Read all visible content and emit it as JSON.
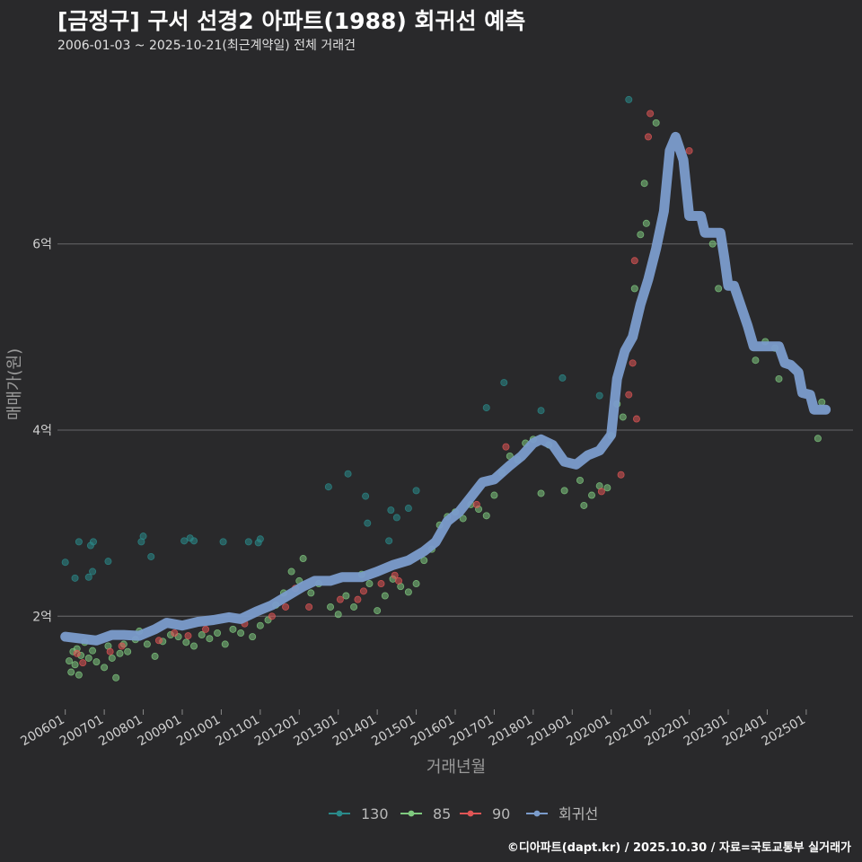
{
  "header": {
    "title": "[금정구] 구서 선경2 아파트(1988) 회귀선 예측",
    "subtitle": "2006-01-03 ~ 2025-10-21(최근계약일) 전체 거래건"
  },
  "footer": {
    "credit": "©디아파트(dapt.kr) / 2025.10.30 / 자료=국토교통부 실거래가"
  },
  "chart_data": {
    "type": "scatter",
    "title": "[금정구] 구서 선경2 아파트(1988) 회귀선 예측",
    "xlabel": "거래년월",
    "ylabel": "매매가(원)",
    "xlim": [
      2005.8,
      2026.2
    ],
    "ylim": [
      1.0,
      7.8
    ],
    "y_unit": "억",
    "y_ticks": [
      2,
      4,
      6
    ],
    "y_tick_labels": [
      "2억",
      "4억",
      "6억"
    ],
    "x_ticks": [
      2006,
      2007,
      2008,
      2009,
      2010,
      2011,
      2012,
      2013,
      2014,
      2015,
      2016,
      2017,
      2018,
      2019,
      2020,
      2021,
      2022,
      2023,
      2024,
      2025
    ],
    "x_tick_labels": [
      "200601",
      "200701",
      "200801",
      "200901",
      "201001",
      "201101",
      "201201",
      "201301",
      "201401",
      "201501",
      "201601",
      "201701",
      "201801",
      "201901",
      "202001",
      "202101",
      "202201",
      "202301",
      "202401",
      "202501"
    ],
    "legend": {
      "position": "bottom",
      "entries": [
        {
          "label": "130",
          "color": "#2a8a8a"
        },
        {
          "label": "85",
          "color": "#7fc97f"
        },
        {
          "label": "90",
          "color": "#e05555"
        },
        {
          "label": "회귀선",
          "color": "#7b9ccc"
        }
      ]
    },
    "series": [
      {
        "name": "130",
        "color": "#2a8a8a",
        "points": [
          [
            2006.0,
            2.58
          ],
          [
            2006.25,
            2.41
          ],
          [
            2006.35,
            2.8
          ],
          [
            2006.6,
            2.42
          ],
          [
            2006.65,
            2.76
          ],
          [
            2006.72,
            2.8
          ],
          [
            2006.7,
            2.48
          ],
          [
            2007.1,
            2.59
          ],
          [
            2007.95,
            2.8
          ],
          [
            2008.0,
            2.86
          ],
          [
            2008.2,
            2.64
          ],
          [
            2009.05,
            2.81
          ],
          [
            2009.2,
            2.84
          ],
          [
            2009.3,
            2.81
          ],
          [
            2010.05,
            2.8
          ],
          [
            2010.7,
            2.8
          ],
          [
            2010.95,
            2.79
          ],
          [
            2011.0,
            2.83
          ],
          [
            2012.75,
            3.39
          ],
          [
            2013.25,
            3.53
          ],
          [
            2013.7,
            3.29
          ],
          [
            2013.75,
            3.0
          ],
          [
            2014.3,
            2.81
          ],
          [
            2014.35,
            3.14
          ],
          [
            2014.5,
            3.06
          ],
          [
            2014.8,
            3.16
          ],
          [
            2015.0,
            3.35
          ],
          [
            2016.8,
            4.24
          ],
          [
            2017.25,
            4.51
          ],
          [
            2018.2,
            4.21
          ],
          [
            2018.75,
            4.56
          ],
          [
            2019.7,
            4.37
          ],
          [
            2020.45,
            7.55
          ]
        ]
      },
      {
        "name": "85",
        "color": "#7fc97f",
        "points": [
          [
            2006.1,
            1.52
          ],
          [
            2006.15,
            1.4
          ],
          [
            2006.2,
            1.62
          ],
          [
            2006.25,
            1.48
          ],
          [
            2006.3,
            1.65
          ],
          [
            2006.35,
            1.37
          ],
          [
            2006.4,
            1.58
          ],
          [
            2006.5,
            1.72
          ],
          [
            2006.6,
            1.55
          ],
          [
            2006.7,
            1.63
          ],
          [
            2006.8,
            1.51
          ],
          [
            2007.0,
            1.45
          ],
          [
            2007.1,
            1.68
          ],
          [
            2007.2,
            1.55
          ],
          [
            2007.3,
            1.34
          ],
          [
            2007.4,
            1.6
          ],
          [
            2007.5,
            1.7
          ],
          [
            2007.6,
            1.62
          ],
          [
            2007.8,
            1.75
          ],
          [
            2007.9,
            1.84
          ],
          [
            2008.1,
            1.7
          ],
          [
            2008.3,
            1.57
          ],
          [
            2008.5,
            1.73
          ],
          [
            2008.7,
            1.8
          ],
          [
            2008.9,
            1.78
          ],
          [
            2009.1,
            1.72
          ],
          [
            2009.3,
            1.68
          ],
          [
            2009.5,
            1.8
          ],
          [
            2009.7,
            1.76
          ],
          [
            2009.9,
            1.82
          ],
          [
            2010.1,
            1.7
          ],
          [
            2010.3,
            1.86
          ],
          [
            2010.5,
            1.82
          ],
          [
            2010.8,
            1.78
          ],
          [
            2011.0,
            1.9
          ],
          [
            2011.2,
            1.96
          ],
          [
            2011.4,
            2.12
          ],
          [
            2011.6,
            2.25
          ],
          [
            2011.8,
            2.48
          ],
          [
            2012.0,
            2.38
          ],
          [
            2012.1,
            2.62
          ],
          [
            2012.3,
            2.25
          ],
          [
            2012.5,
            2.35
          ],
          [
            2012.8,
            2.1
          ],
          [
            2013.0,
            2.02
          ],
          [
            2013.2,
            2.22
          ],
          [
            2013.4,
            2.1
          ],
          [
            2013.6,
            2.45
          ],
          [
            2013.8,
            2.35
          ],
          [
            2014.0,
            2.06
          ],
          [
            2014.2,
            2.22
          ],
          [
            2014.4,
            2.4
          ],
          [
            2014.6,
            2.32
          ],
          [
            2014.8,
            2.26
          ],
          [
            2015.0,
            2.35
          ],
          [
            2015.2,
            2.6
          ],
          [
            2015.4,
            2.72
          ],
          [
            2015.6,
            2.98
          ],
          [
            2015.8,
            3.07
          ],
          [
            2016.0,
            3.12
          ],
          [
            2016.2,
            3.05
          ],
          [
            2016.4,
            3.2
          ],
          [
            2016.6,
            3.15
          ],
          [
            2016.8,
            3.08
          ],
          [
            2017.0,
            3.3
          ],
          [
            2017.2,
            3.54
          ],
          [
            2017.4,
            3.72
          ],
          [
            2017.6,
            3.68
          ],
          [
            2017.8,
            3.86
          ],
          [
            2018.0,
            3.9
          ],
          [
            2018.2,
            3.32
          ],
          [
            2018.4,
            3.84
          ],
          [
            2018.8,
            3.35
          ],
          [
            2019.2,
            3.46
          ],
          [
            2019.3,
            3.19
          ],
          [
            2019.5,
            3.3
          ],
          [
            2019.7,
            3.4
          ],
          [
            2019.9,
            3.38
          ],
          [
            2020.0,
            3.94
          ],
          [
            2020.15,
            4.28
          ],
          [
            2020.3,
            4.14
          ],
          [
            2020.6,
            5.52
          ],
          [
            2020.75,
            6.1
          ],
          [
            2020.85,
            6.65
          ],
          [
            2020.9,
            6.22
          ],
          [
            2021.15,
            7.3
          ],
          [
            2022.6,
            6.0
          ],
          [
            2022.75,
            5.52
          ],
          [
            2023.7,
            4.75
          ],
          [
            2023.95,
            4.95
          ],
          [
            2024.2,
            4.88
          ],
          [
            2024.3,
            4.55
          ],
          [
            2025.3,
            3.91
          ],
          [
            2025.4,
            4.3
          ]
        ]
      },
      {
        "name": "90",
        "color": "#e05555",
        "points": [
          [
            2006.3,
            1.6
          ],
          [
            2006.45,
            1.5
          ],
          [
            2007.15,
            1.62
          ],
          [
            2007.45,
            1.68
          ],
          [
            2008.4,
            1.74
          ],
          [
            2008.8,
            1.82
          ],
          [
            2009.15,
            1.79
          ],
          [
            2009.6,
            1.86
          ],
          [
            2010.6,
            1.92
          ],
          [
            2011.3,
            2.0
          ],
          [
            2011.65,
            2.1
          ],
          [
            2011.9,
            2.3
          ],
          [
            2012.25,
            2.1
          ],
          [
            2013.05,
            2.18
          ],
          [
            2013.5,
            2.18
          ],
          [
            2013.65,
            2.27
          ],
          [
            2014.1,
            2.35
          ],
          [
            2014.45,
            2.44
          ],
          [
            2014.55,
            2.38
          ],
          [
            2016.55,
            3.2
          ],
          [
            2017.3,
            3.82
          ],
          [
            2019.75,
            3.34
          ],
          [
            2020.25,
            3.52
          ],
          [
            2020.45,
            4.38
          ],
          [
            2020.55,
            4.72
          ],
          [
            2020.6,
            5.82
          ],
          [
            2020.65,
            4.12
          ],
          [
            2020.95,
            7.15
          ],
          [
            2021.0,
            7.4
          ],
          [
            2022.0,
            7.0
          ]
        ]
      }
    ],
    "regression": {
      "name": "회귀선",
      "color": "#7b9ccc",
      "points": [
        [
          2006.0,
          1.78
        ],
        [
          2006.4,
          1.76
        ],
        [
          2006.8,
          1.74
        ],
        [
          2007.2,
          1.8
        ],
        [
          2007.5,
          1.8
        ],
        [
          2007.9,
          1.79
        ],
        [
          2008.3,
          1.86
        ],
        [
          2008.6,
          1.93
        ],
        [
          2009.0,
          1.9
        ],
        [
          2009.4,
          1.94
        ],
        [
          2009.8,
          1.96
        ],
        [
          2010.2,
          1.99
        ],
        [
          2010.5,
          1.97
        ],
        [
          2010.9,
          2.05
        ],
        [
          2011.3,
          2.12
        ],
        [
          2011.7,
          2.22
        ],
        [
          2012.1,
          2.32
        ],
        [
          2012.4,
          2.38
        ],
        [
          2012.8,
          2.38
        ],
        [
          2013.1,
          2.42
        ],
        [
          2013.6,
          2.42
        ],
        [
          2014.0,
          2.48
        ],
        [
          2014.4,
          2.55
        ],
        [
          2014.8,
          2.6
        ],
        [
          2015.2,
          2.7
        ],
        [
          2015.5,
          2.8
        ],
        [
          2015.8,
          3.02
        ],
        [
          2016.1,
          3.12
        ],
        [
          2016.4,
          3.28
        ],
        [
          2016.7,
          3.44
        ],
        [
          2017.0,
          3.47
        ],
        [
          2017.4,
          3.62
        ],
        [
          2017.7,
          3.72
        ],
        [
          2018.0,
          3.86
        ],
        [
          2018.2,
          3.9
        ],
        [
          2018.5,
          3.84
        ],
        [
          2018.8,
          3.66
        ],
        [
          2019.1,
          3.63
        ],
        [
          2019.4,
          3.73
        ],
        [
          2019.7,
          3.78
        ],
        [
          2020.0,
          3.95
        ],
        [
          2020.15,
          4.55
        ],
        [
          2020.35,
          4.85
        ],
        [
          2020.55,
          5.0
        ],
        [
          2020.75,
          5.35
        ],
        [
          2020.95,
          5.62
        ],
        [
          2021.15,
          5.95
        ],
        [
          2021.35,
          6.35
        ],
        [
          2021.5,
          7.0
        ],
        [
          2021.65,
          7.15
        ],
        [
          2021.85,
          6.9
        ],
        [
          2022.0,
          6.3
        ],
        [
          2022.3,
          6.3
        ],
        [
          2022.4,
          6.12
        ],
        [
          2022.8,
          6.12
        ],
        [
          2022.9,
          5.85
        ],
        [
          2023.0,
          5.55
        ],
        [
          2023.15,
          5.55
        ],
        [
          2023.5,
          5.12
        ],
        [
          2023.65,
          4.9
        ],
        [
          2024.1,
          4.9
        ],
        [
          2024.3,
          4.9
        ],
        [
          2024.45,
          4.72
        ],
        [
          2024.6,
          4.7
        ],
        [
          2024.8,
          4.62
        ],
        [
          2024.9,
          4.4
        ],
        [
          2025.1,
          4.38
        ],
        [
          2025.2,
          4.22
        ],
        [
          2025.5,
          4.22
        ]
      ]
    }
  }
}
